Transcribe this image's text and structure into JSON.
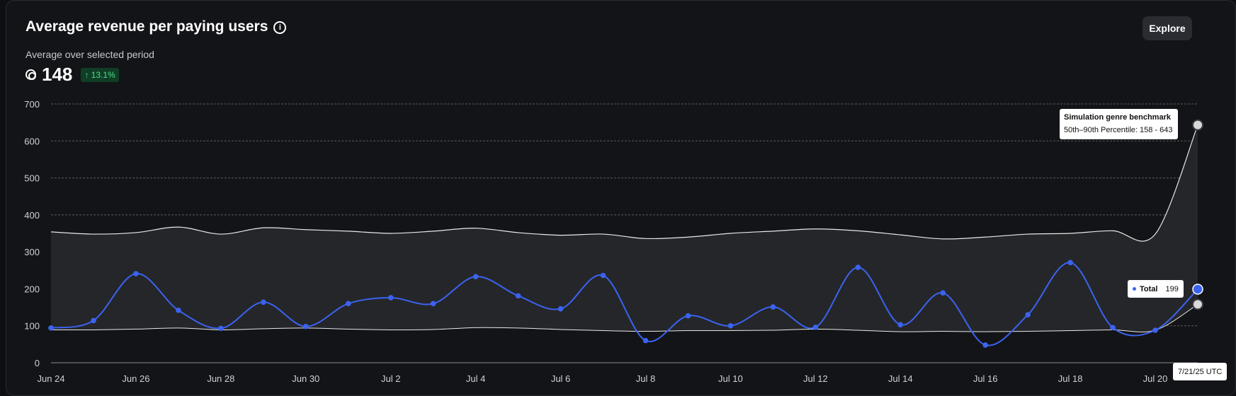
{
  "header": {
    "title": "Average revenue per paying users",
    "explore_label": "Explore",
    "subtitle": "Average over selected period",
    "metric_value": "148",
    "change": "↑ 13.1%"
  },
  "colors": {
    "total": "#3b63f0",
    "benchmark_line": "#e8e8e8",
    "band": "#26272b",
    "positive": "#4fe08a"
  },
  "tooltips": {
    "benchmark_title": "Simulation genre benchmark",
    "benchmark_range": "50th–90th Percentile: 158 - 643",
    "total_name": "Total",
    "total_value": "199",
    "date": "7/21/25 UTC"
  },
  "chart_data": {
    "type": "line",
    "ylim": [
      0,
      700
    ],
    "yticks": [
      0,
      100,
      200,
      300,
      400,
      500,
      600,
      700
    ],
    "grid": true,
    "x": [
      "Jun 24",
      "Jun 25",
      "Jun 26",
      "Jun 27",
      "Jun 28",
      "Jun 29",
      "Jun 30",
      "Jul 1",
      "Jul 2",
      "Jul 3",
      "Jul 4",
      "Jul 5",
      "Jul 6",
      "Jul 7",
      "Jul 8",
      "Jul 9",
      "Jul 10",
      "Jul 11",
      "Jul 12",
      "Jul 13",
      "Jul 14",
      "Jul 15",
      "Jul 16",
      "Jul 17",
      "Jul 18",
      "Jul 19",
      "Jul 20",
      "Jul 21"
    ],
    "xtick_labels": [
      "Jun 24",
      "Jun 26",
      "Jun 28",
      "Jun 30",
      "Jul 2",
      "Jul 4",
      "Jul 6",
      "Jul 8",
      "Jul 10",
      "Jul 12",
      "Jul 14",
      "Jul 16",
      "Jul 18",
      "Jul 20"
    ],
    "series": [
      {
        "name": "Total",
        "values": [
          94,
          114,
          241,
          142,
          93,
          164,
          98,
          160,
          176,
          160,
          233,
          181,
          146,
          236,
          60,
          127,
          100,
          151,
          96,
          258,
          103,
          189,
          48,
          130,
          271,
          95,
          88,
          199
        ]
      }
    ],
    "band": {
      "name": "Simulation genre benchmark",
      "upper": [
        354,
        348,
        352,
        367,
        348,
        365,
        360,
        356,
        350,
        356,
        364,
        352,
        345,
        348,
        336,
        340,
        350,
        356,
        362,
        357,
        346,
        335,
        340,
        348,
        350,
        357,
        348,
        643
      ],
      "lower": [
        89,
        89,
        91,
        94,
        89,
        92,
        94,
        91,
        89,
        90,
        95,
        94,
        90,
        87,
        85,
        87,
        87,
        88,
        91,
        88,
        84,
        85,
        84,
        85,
        87,
        89,
        88,
        158
      ]
    }
  }
}
